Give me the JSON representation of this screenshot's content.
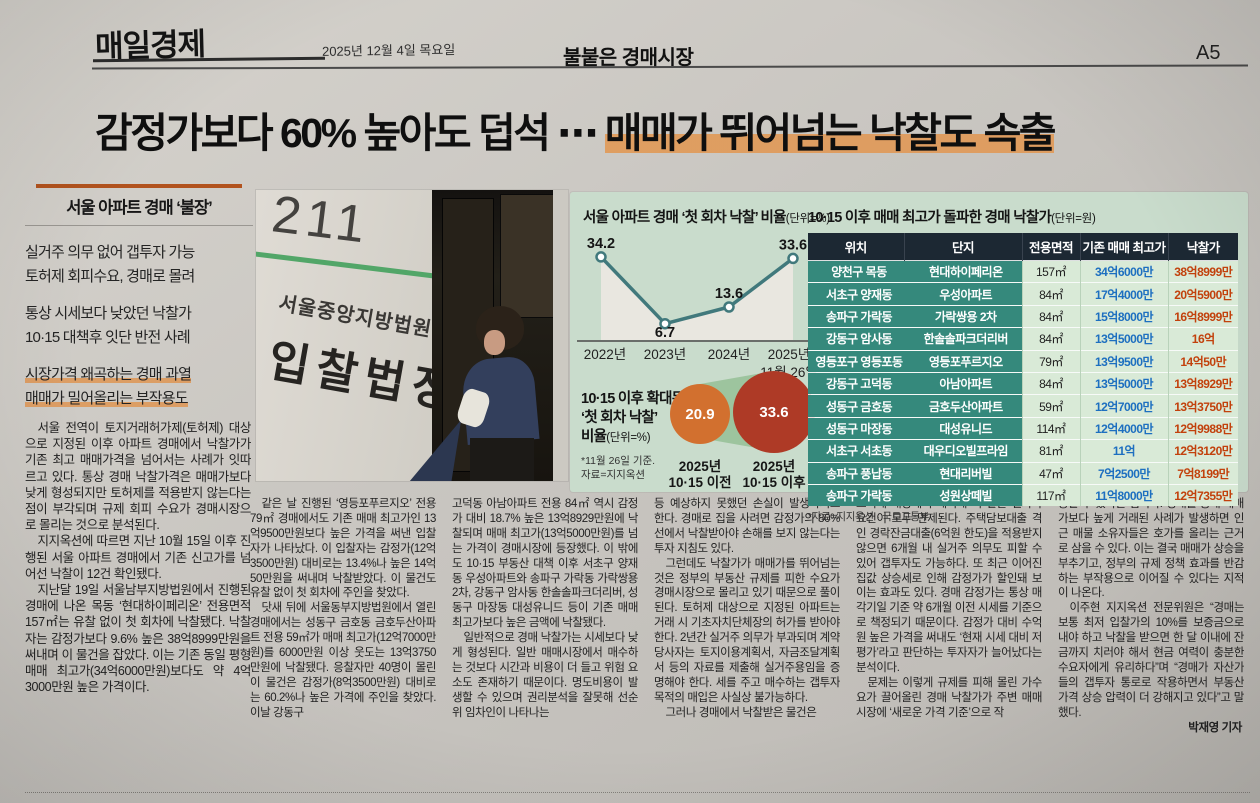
{
  "masthead": {
    "logo": "매일경제",
    "date": "2025년 12월 4일 목요일",
    "section": "불붙은 경매시장",
    "page": "A5"
  },
  "headline": {
    "plain": "감정가보다 60% 높아도 덥석 ⋯ ",
    "highlight": "매매가 뛰어넘는 낙찰도 속출"
  },
  "sidebar": {
    "kicker": "서울 아파트 경매 ‘불장’",
    "bullets": [
      {
        "line1": "실거주 의무 없어 갭투자 가능",
        "line2": "토허제 회피수요, 경매로 몰려",
        "marked": false
      },
      {
        "line1": "통상 시세보다 낮았던 낙찰가",
        "line2": "10·15 대책후 잇단 반전 사례",
        "marked": false
      },
      {
        "line1": "시장가격 왜곡하는 경매 과열",
        "line2": "매매가 밀어올리는 부작용도",
        "marked": true
      }
    ]
  },
  "photo": {
    "sign_number": "211",
    "sign_court": "서울중앙지방법원",
    "sign_room": "입찰법정"
  },
  "colors": {
    "headline_marker": "#e29650",
    "kicker_bar": "#b2531e",
    "infographic_bg": "#c9dccc",
    "line_color": "#41797c",
    "area_fill": "#e9e7e0",
    "table_header_bg": "#1c2833",
    "location_cell_bg": "#35897c",
    "value_cell_bg": "#d9ead7",
    "prev_high_text": "#1d6fc0",
    "winning_bid_text": "#c2410c"
  },
  "chart_data": [
    {
      "type": "line",
      "title": "서울 아파트 경매 ‘첫 회차 낙찰’ 비율",
      "unit": "(단위=%)",
      "categories": [
        "2022년",
        "2023년",
        "2024년",
        "2025년"
      ],
      "last_category_sub": "11월 26일",
      "values": [
        34.2,
        6.7,
        13.6,
        33.6
      ],
      "ylim": [
        0,
        40
      ],
      "grid": false,
      "legend": "none"
    },
    {
      "type": "bubble",
      "title_lines": [
        "10·15 이후 확대된",
        "‘첫 회차 낙찰’",
        "비율"
      ],
      "unit": "(단위=%)",
      "note_lines": [
        "*11월 26일 기준.",
        "자료=지지옥션"
      ],
      "points": [
        {
          "label_line1": "2025년",
          "label_line2": "10·15 이전",
          "value": 20.9,
          "color": "#d2702f",
          "radius": 30
        },
        {
          "label_line1": "2025년",
          "label_line2": "10·15 이후",
          "value": 33.6,
          "color": "#ae3a26",
          "radius": 41
        }
      ]
    },
    {
      "type": "table",
      "title": "10·15 이후 매매 최고가 돌파한 경매 낙찰가",
      "unit": "(단위=원)",
      "source": "*자료=지지옥션 · 국토교통부",
      "columns": [
        "위치",
        "단지",
        "전용면적",
        "기존 매매 최고가",
        "낙찰가"
      ],
      "rows": [
        [
          "양천구 목동",
          "현대하이페리온",
          "157㎡",
          "34억6000만",
          "38억8999만"
        ],
        [
          "서초구 양재동",
          "우성아파트",
          "84㎡",
          "17억4000만",
          "20억5900만"
        ],
        [
          "송파구 가락동",
          "가락쌍용 2차",
          "84㎡",
          "15억8000만",
          "16억8999만"
        ],
        [
          "강동구 암사동",
          "한솔솔파크더리버",
          "84㎡",
          "13억5000만",
          "16억"
        ],
        [
          "영등포구 영등포동",
          "영등포푸르지오",
          "79㎡",
          "13억9500만",
          "14억50만"
        ],
        [
          "강동구 고덕동",
          "아남아파트",
          "84㎡",
          "13억5000만",
          "13억8929만"
        ],
        [
          "성동구 금호동",
          "금호두산아파트",
          "59㎡",
          "12억7000만",
          "13억3750만"
        ],
        [
          "성동구 마장동",
          "대성유니드",
          "114㎡",
          "12억4000만",
          "12억9988만"
        ],
        [
          "서초구 서초동",
          "대우디오빌프라임",
          "81㎡",
          "11억",
          "12억3120만"
        ],
        [
          "송파구 풍납동",
          "현대리버빌",
          "47㎡",
          "7억2500만",
          "7억8199만"
        ],
        [
          "송파구 가락동",
          "성원상떼빌",
          "117㎡",
          "11억8000만",
          "12억7355만"
        ]
      ]
    }
  ],
  "body": {
    "col1": [
      "서울 전역이 토지거래허가제(토허제) 대상으로 지정된 이후 아파트 경매에서 낙찰가가 기존 최고 매매가격을 넘어서는 사례가 잇따르고 있다. 통상 경매 낙찰가격은 매매가보다 낮게 형성되지만 토허제를 적용받지 않는다는 점이 부각되며 규제 회피 수요가 경매시장으로 몰리는 것으로 분석된다.",
      "지지옥션에 따르면 지난 10월 15일 이후 진행된 서울 아파트 경매에서 기존 신고가를 넘어선 낙찰이 12건 확인됐다.",
      "지난달 19일 서울남부지방법원에서 진행된 경매에 나온 목동 ‘현대하이페리온’ 전용면적 157㎡는 유찰 없이 첫 회차에 낙찰됐다. 낙찰자는 감정가보다 9.6% 높은 38억8999만원을 써내며 이 물건을 잡았다. 이는 기존 동일 평형 매매 최고가(34억6000만원)보다도 약 4억3000만원 높은 가격이다."
    ],
    "col2": [
      "같은 날 진행된 ‘영등포푸르지오’ 전용 79㎡ 경매에서도 기존 매매 최고가인 13억9500만원보다 높은 가격을 써낸 입찰자가 나타났다. 이 입찰자는 감정가(12억3500만원) 대비로는 13.4%나 높은 14억50만원을 써내며 낙찰받았다. 이 물건도 유찰 없이 첫 회차에 주인을 찾았다.",
      "닷새 뒤에 서울동부지방법원에서 열린 경매에서는 성동구 금호동 금호두산아파트 전용 59㎡가 매매 최고가(12억7000만원)를 6000만원 이상 웃도는 13억3750만원에 낙찰됐다. 응찰자만 40명이 몰린 이 물건은 감정가(8억3500만원) 대비로는 60.2%나 높은 가격에 주인을 찾았다. 이날 강동구"
    ],
    "col3": [
      "고덕동 아남아파트 전용 84㎡ 역시 감정가 대비 18.7% 높은 13억8929만원에 낙찰되며 매매 최고가(13억5000만원)를 넘는 가격이 경매시장에 등장했다. 이 밖에도 10·15 부동산 대책 이후 서초구 양재동 우성아파트와 송파구 가락동 가락쌍용2차, 강동구 암사동 한솔솔파크더리버, 성동구 마장동 대성유니드 등이 기존 매매 최고가보다 높은 금액에 낙찰됐다.",
      "일반적으로 경매 낙찰가는 시세보다 낮게 형성된다. 일반 매매시장에서 매수하는 것보다 시간과 비용이 더 들고 위험 요소도 존재하기 때문이다. 명도비용이 발생할 수 있으며 권리분석을 잘못해 선순위 임차인이 나타나는"
    ],
    "col4": [
      "등 예상하지 못했던 손실이 발생하기도 한다. 경매로 집을 사려면 감정가의 80% 선에서 낙찰받아야 손해를 보지 않는다는 투자 지침도 있다.",
      "그런데도 낙찰가가 매매가를 뛰어넘는 것은 정부의 부동산 규제를 피한 수요가 경매시장으로 몰리고 있기 때문으로 풀이된다. 토허제 대상으로 지정된 아파트는 거래 시 기초자치단체장의 허가를 받아야 한다. 2년간 실거주 의무가 부과되며 계약 당사자는 토지이용계획서, 자금조달계획서 등의 자료를 제출해 실거주용임을 증명해야 한다. 세를 주고 매수하는 갭투자 목적의 매입은 사실상 불가능하다.",
      "그러나 경매에서 낙찰받은 물건은"
    ],
    "col5": [
      "토허제 대상에서 제외돼 이 같은 절차와 요건이 모두 면제된다. 주택담보대출 격인 경락잔금대출(6억원 한도)을 적용받지 않으면 6개월 내 실거주 의무도 피할 수 있어 갭투자도 가능하다. 또 최근 이어진 집값 상승세로 인해 감정가가 할인돼 보이는 효과도 있다. 경매 감정가는 통상 매각기일 기준 약 6개월 이전 시세를 기준으로 책정되기 때문이다. 감정가 대비 수억원 높은 가격을 써내도 ‘현재 시세 대비 저평가’라고 판단하는 투자자가 늘어났다는 분석이다.",
      "문제는 이렇게 규제를 피해 몰린 가수요가 끌어올린 경매 낙찰가가 주변 매매시장에 ‘새로운 가격 기준’으로 작"
    ],
    "col6": [
      "용할 수 있다는 점이다. 경매를 통해 매매가보다 높게 거래된 사례가 발생하면 인근 매물 소유자들은 호가를 올리는 근거로 삼을 수 있다. 이는 결국 매매가 상승을 부추기고, 정부의 규제 정책 효과를 반감하는 부작용으로 이어질 수 있다는 지적이 나온다.",
      "이주현 지지옥션 전문위원은 “경매는 보통 최저 입찰가의 10%를 보증금으로 내야 하고 낙찰을 받으면 한 달 이내에 잔금까지 치러야 해서 현금 여력이 충분한 수요자에게 유리하다”며 “경매가 자산가들의 갭투자 통로로 작용하면서 부동산 가격 상승 압력이 더 강해지고 있다”고 말했다."
    ],
    "byline": "박재영 기자"
  }
}
